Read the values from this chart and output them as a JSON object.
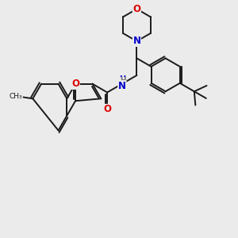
{
  "bg_color": "#ebebeb",
  "bond_color": "#1a1a1a",
  "bond_width": 1.4,
  "atom_colors": {
    "O": "#dd0000",
    "N": "#0000cc",
    "H": "#777777",
    "C": "#1a1a1a"
  },
  "font_size": 8.5,
  "fig_width": 3.0,
  "fig_height": 3.0,
  "xlim": [
    0,
    10
  ],
  "ylim": [
    0,
    10
  ]
}
